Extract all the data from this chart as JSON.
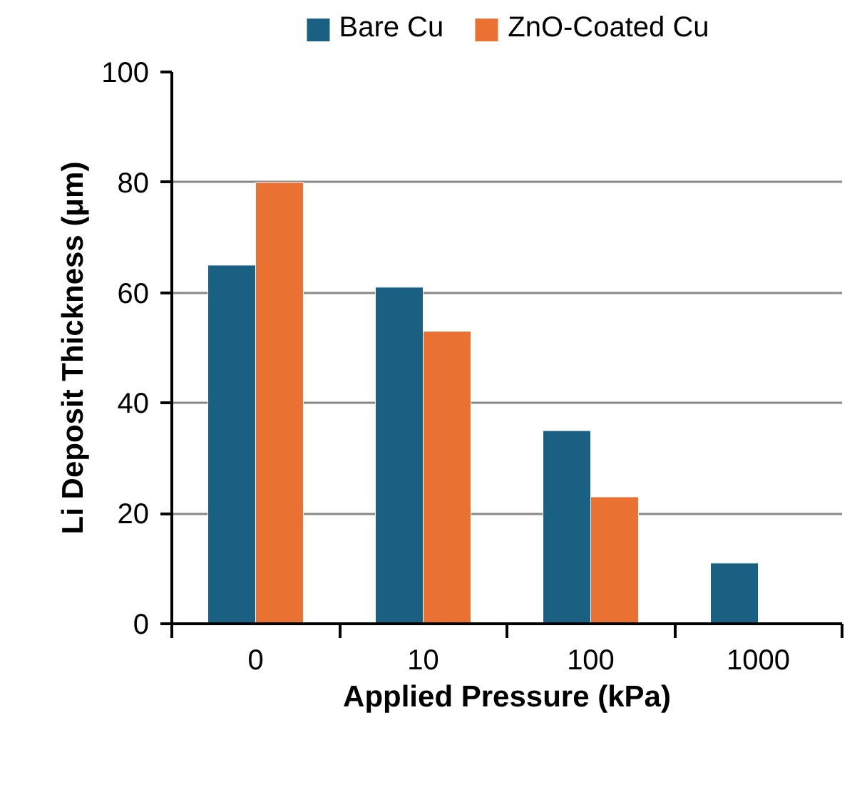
{
  "chart_data": {
    "type": "bar",
    "xlabel": "Applied Pressure (kPa)",
    "ylabel": "Li Deposit Thickness (μm)",
    "categories": [
      "0",
      "10",
      "100",
      "1000"
    ],
    "series": [
      {
        "name": "Bare Cu",
        "color": "#1a6082",
        "values": [
          65,
          61,
          35,
          11
        ]
      },
      {
        "name": "ZnO-Coated Cu",
        "color": "#e97132",
        "values": [
          80,
          53,
          23,
          null
        ]
      }
    ],
    "ylim": [
      0,
      100
    ],
    "yticks": [
      0,
      20,
      40,
      60,
      80,
      100
    ],
    "grid": "y",
    "legend": "top"
  }
}
